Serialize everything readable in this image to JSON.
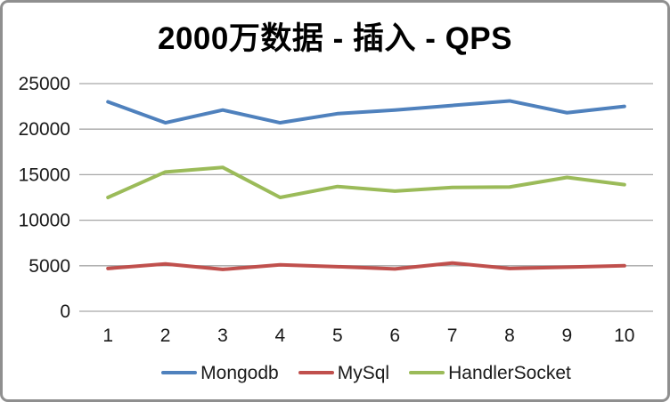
{
  "window": {
    "background_color": "#ffffff",
    "border_color": "#8f8f8f"
  },
  "chart_data": {
    "type": "line",
    "title": "2000万数据 - 插入 - QPS",
    "categories": [
      "1",
      "2",
      "3",
      "4",
      "5",
      "6",
      "7",
      "8",
      "9",
      "10"
    ],
    "series": [
      {
        "name": "Mongodb",
        "color": "#4F81BD",
        "values": [
          23000,
          20700,
          22100,
          20700,
          21700,
          22100,
          22600,
          23100,
          21800,
          22500
        ]
      },
      {
        "name": "MySql",
        "color": "#C0504D",
        "values": [
          4700,
          5200,
          4600,
          5100,
          4900,
          4650,
          5300,
          4700,
          4850,
          5000
        ]
      },
      {
        "name": "HandlerSocket",
        "color": "#9BBB59",
        "values": [
          12500,
          15300,
          15800,
          12500,
          13700,
          13200,
          13600,
          13650,
          14700,
          13900
        ]
      }
    ],
    "xlabel": "",
    "ylabel": "",
    "y_axis": {
      "min": 0,
      "max": 25000,
      "step": 5000,
      "tick_labels": [
        "0",
        "5000",
        "10000",
        "15000",
        "20000",
        "25000"
      ]
    },
    "grid": true,
    "gridline_color": "#A6A6A6",
    "axis_text_color": "#1a1a1a",
    "legend_position": "bottom"
  }
}
